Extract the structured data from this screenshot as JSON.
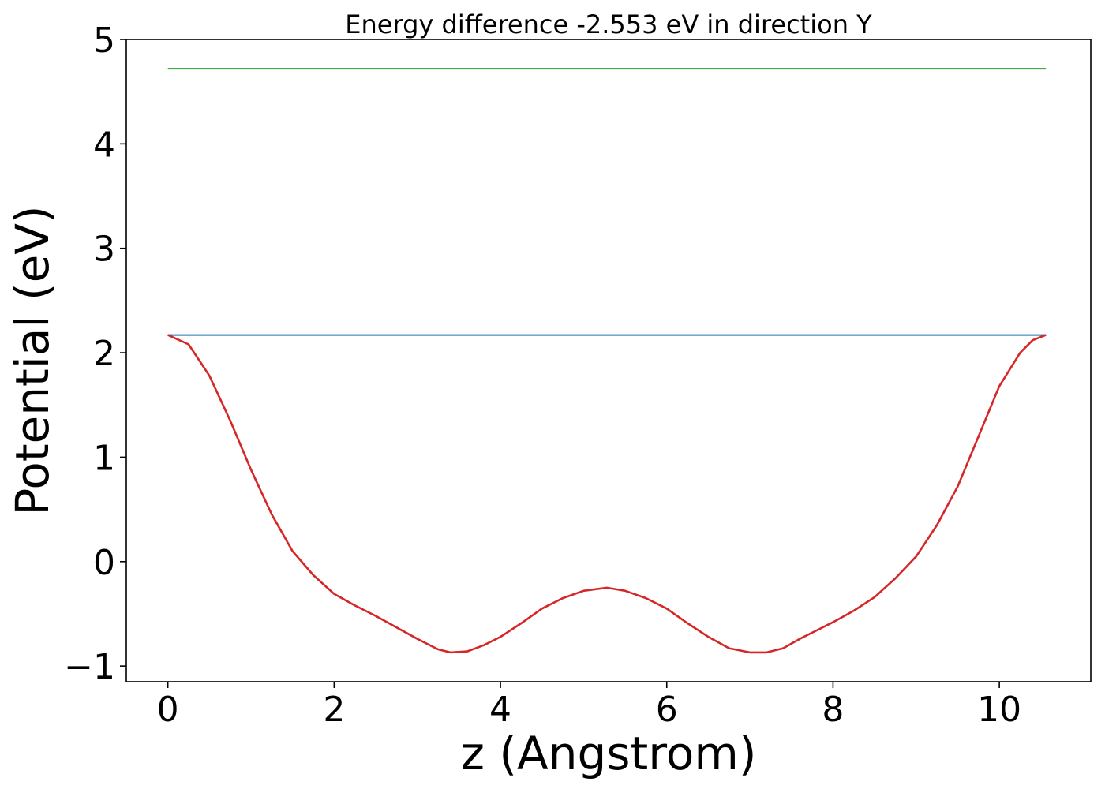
{
  "chart_data": {
    "type": "line",
    "title": "Energy difference -2.553 eV in direction Y",
    "xlabel": "z (Angstrom)",
    "ylabel": "Potential (eV)",
    "xlim": [
      -0.5,
      11.1
    ],
    "ylim": [
      -1.15,
      5.0
    ],
    "x_ticks": [
      "0",
      "2",
      "4",
      "6",
      "8",
      "10"
    ],
    "y_ticks": [
      "−1",
      "0",
      "1",
      "2",
      "3",
      "4",
      "5"
    ],
    "grid": false,
    "legend": "none",
    "series": [
      {
        "color": "#2ca02c",
        "x": [
          0,
          10.56
        ],
        "values": [
          4.72,
          4.72
        ]
      },
      {
        "color": "#1f77b4",
        "x": [
          0,
          10.56
        ],
        "values": [
          2.17,
          2.17
        ]
      },
      {
        "color": "#d62728",
        "x": [
          0.0,
          0.25,
          0.5,
          0.75,
          1.0,
          1.25,
          1.5,
          1.75,
          2.0,
          2.25,
          2.5,
          2.75,
          3.0,
          3.25,
          3.4,
          3.6,
          3.8,
          4.0,
          4.25,
          4.5,
          4.75,
          5.0,
          5.28,
          5.5,
          5.75,
          6.0,
          6.25,
          6.5,
          6.75,
          7.0,
          7.2,
          7.4,
          7.6,
          7.8,
          8.0,
          8.25,
          8.5,
          8.75,
          9.0,
          9.25,
          9.5,
          9.75,
          10.0,
          10.25,
          10.4,
          10.56
        ],
        "values": [
          2.17,
          2.08,
          1.78,
          1.35,
          0.88,
          0.45,
          0.1,
          -0.13,
          -0.31,
          -0.42,
          -0.52,
          -0.63,
          -0.74,
          -0.84,
          -0.87,
          -0.86,
          -0.8,
          -0.72,
          -0.59,
          -0.45,
          -0.35,
          -0.28,
          -0.25,
          -0.28,
          -0.35,
          -0.45,
          -0.59,
          -0.72,
          -0.83,
          -0.87,
          -0.87,
          -0.83,
          -0.74,
          -0.66,
          -0.58,
          -0.47,
          -0.34,
          -0.16,
          0.05,
          0.35,
          0.72,
          1.2,
          1.68,
          2.0,
          2.12,
          2.17
        ]
      }
    ]
  }
}
